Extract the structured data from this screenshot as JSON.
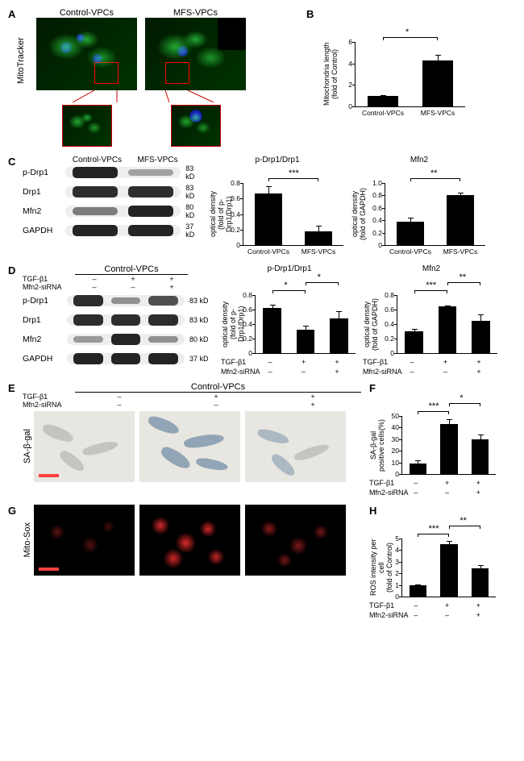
{
  "panelA": {
    "label": "A",
    "y_label": "MitoTracker",
    "col1_title": "Control-VPCs",
    "col2_title": "MFS-VPCs"
  },
  "panelB": {
    "label": "B",
    "ylabel": "Mitochondria length\n(fold of Control)",
    "ylim": [
      0,
      6
    ],
    "ytick_step": 2,
    "categories": [
      "Control-VPCs",
      "MFS-VPCs"
    ],
    "values": [
      1.0,
      4.3
    ],
    "errors": [
      0.05,
      0.5
    ],
    "bar_color": "#000000",
    "sig": "*"
  },
  "panelC": {
    "label": "C",
    "blot_cols": [
      "Control-VPCs",
      "MFS-VPCs"
    ],
    "rows": [
      {
        "name": "p-Drp1",
        "kd": "83 kD",
        "intensity": [
          0.95,
          0.25
        ]
      },
      {
        "name": "Drp1",
        "kd": "83 kD",
        "intensity": [
          0.9,
          0.9
        ]
      },
      {
        "name": "Mfn2",
        "kd": "80 kD",
        "intensity": [
          0.45,
          0.95
        ]
      },
      {
        "name": "GAPDH",
        "kd": "37 kD",
        "intensity": [
          0.95,
          0.95
        ]
      }
    ],
    "chart1": {
      "title": "p-Drp1/Drp1",
      "ylabel": "optical density\n(fold of p-Drp1/Drp1)",
      "ylim": [
        0,
        0.8
      ],
      "ytick_step": 0.2,
      "categories": [
        "Control-VPCs",
        "MFS-VPCs"
      ],
      "values": [
        0.66,
        0.18
      ],
      "errors": [
        0.1,
        0.07
      ],
      "sig": "***"
    },
    "chart2": {
      "title": "Mfn2",
      "ylabel": "optical density\n(fold of GAPDH)",
      "ylim": [
        0,
        1.0
      ],
      "ytick_step": 0.2,
      "categories": [
        "Control-VPCs",
        "MFS-VPCs"
      ],
      "values": [
        0.38,
        0.8
      ],
      "errors": [
        0.06,
        0.04
      ],
      "sig": "**"
    }
  },
  "panelD": {
    "label": "D",
    "header": "Control-VPCs",
    "cond_labels": [
      "TGF-β1",
      "Mfn2-siRNA"
    ],
    "cond_values": [
      [
        "–",
        "+",
        "+"
      ],
      [
        "–",
        "–",
        "+"
      ]
    ],
    "rows": [
      {
        "name": "p-Drp1",
        "kd": "83 kD",
        "intensity": [
          0.9,
          0.35,
          0.7
        ]
      },
      {
        "name": "Drp1",
        "kd": "83 kD",
        "intensity": [
          0.9,
          0.9,
          0.9
        ]
      },
      {
        "name": "Mfn2",
        "kd": "80 kD",
        "intensity": [
          0.3,
          0.95,
          0.35
        ]
      },
      {
        "name": "GAPDH",
        "kd": "37 kD",
        "intensity": [
          0.95,
          0.95,
          0.95
        ]
      }
    ],
    "chart1": {
      "title": "p-Drp1/Drp1",
      "ylabel": "optical density\n(fold of p-Drp1/Drp1)",
      "ylim": [
        0,
        0.8
      ],
      "ytick_step": 0.2,
      "values": [
        0.62,
        0.32,
        0.48
      ],
      "errors": [
        0.05,
        0.06,
        0.1
      ],
      "sigs": [
        {
          "from": 0,
          "to": 1,
          "label": "*"
        },
        {
          "from": 1,
          "to": 2,
          "label": "*"
        }
      ]
    },
    "chart2": {
      "title": "Mfn2",
      "ylabel": "optical density\n(fold of GAPDH)",
      "ylim": [
        0,
        0.8
      ],
      "ytick_step": 0.2,
      "values": [
        0.3,
        0.64,
        0.45
      ],
      "errors": [
        0.03,
        0.02,
        0.08
      ],
      "sigs": [
        {
          "from": 0,
          "to": 1,
          "label": "***"
        },
        {
          "from": 1,
          "to": 2,
          "label": "**"
        }
      ]
    }
  },
  "panelE": {
    "label": "E",
    "header": "Control-VPCs",
    "cond_labels": [
      "TGF-β1",
      "Mfn2-siRNA"
    ],
    "cond_values": [
      [
        "–",
        "+",
        "+"
      ],
      [
        "–",
        "–",
        "+"
      ]
    ],
    "y_label": "SA-β-gal"
  },
  "panelF": {
    "label": "F",
    "ylabel": "SA-β-gal\npositive cells(%)",
    "ylim": [
      0,
      50
    ],
    "ytick_step": 10,
    "values": [
      9,
      43,
      30
    ],
    "errors": [
      3,
      4,
      4
    ],
    "sigs": [
      {
        "from": 0,
        "to": 1,
        "label": "***"
      },
      {
        "from": 1,
        "to": 2,
        "label": "*"
      }
    ],
    "cond_labels": [
      "TGF-β1",
      "Mfn2-siRNA"
    ],
    "cond_values": [
      [
        "–",
        "+",
        "+"
      ],
      [
        "–",
        "–",
        "+"
      ]
    ]
  },
  "panelG": {
    "label": "G",
    "y_label": "Mito-Sox"
  },
  "panelH": {
    "label": "H",
    "ylabel": "ROS intensity per cell\n(fold of Control)",
    "ylim": [
      0,
      5
    ],
    "ytick_step": 1,
    "values": [
      1.0,
      4.5,
      2.4
    ],
    "errors": [
      0.05,
      0.3,
      0.3
    ],
    "sigs": [
      {
        "from": 0,
        "to": 1,
        "label": "***"
      },
      {
        "from": 1,
        "to": 2,
        "label": "**"
      }
    ],
    "cond_labels": [
      "TGF-β1",
      "Mfn2-siRNA"
    ],
    "cond_values": [
      [
        "–",
        "+",
        "+"
      ],
      [
        "–",
        "–",
        "+"
      ]
    ]
  }
}
